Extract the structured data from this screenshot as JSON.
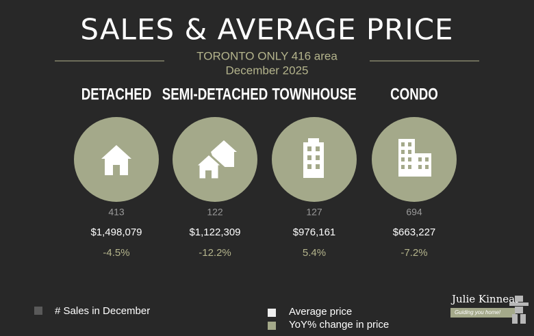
{
  "header": {
    "title": "SALES & AVERAGE PRICE",
    "subtitle": "TORONTO ONLY 416 area",
    "period": "December 2025"
  },
  "types": [
    {
      "name": "DETACHED",
      "sales": "413",
      "price": "$1,498,079",
      "change": "-4.5%"
    },
    {
      "name": "SEMI-DETACHED",
      "sales": "122",
      "price": "$1,122,309",
      "change": "-12.2%"
    },
    {
      "name": "TOWNHOUSE",
      "sales": "127",
      "price": "$976,161",
      "change": "5.4%"
    },
    {
      "name": "CONDO",
      "sales": "694",
      "price": "$663,227",
      "change": "-7.2%"
    }
  ],
  "legend": {
    "sales": "# Sales in December",
    "price": "Average  price",
    "change": "YoY% change in price"
  },
  "logo": {
    "name": "Julie Kinnear",
    "tagline": "Guiding you home!"
  }
}
